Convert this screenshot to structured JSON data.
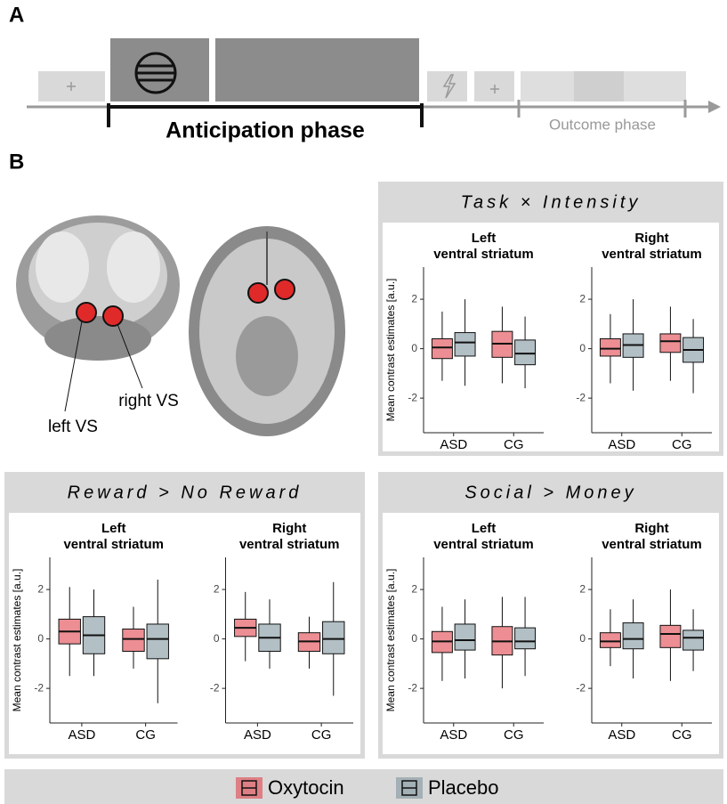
{
  "panel_a": {
    "label": "A",
    "anticipation": "Anticipation phase",
    "outcome": "Outcome phase"
  },
  "panel_b": {
    "label": "B",
    "left_vs": "left VS",
    "right_vs": "right VS"
  },
  "chart_data": [
    {
      "title": "Task × Intensity",
      "charts": [
        {
          "type": "box",
          "title": [
            "Left",
            "ventral striatum"
          ],
          "ylabel": "Mean contrast estimates [a.u.]",
          "categories": [
            "ASD",
            "CG"
          ],
          "ylim": [
            -3.4,
            3.3
          ],
          "yticks": [
            -2,
            0,
            2
          ],
          "boxes": [
            [
              [
                -1.3,
                -0.4,
                0.05,
                0.4,
                1.5
              ],
              [
                -1.5,
                -0.3,
                0.25,
                0.65,
                2.0
              ]
            ],
            [
              [
                -1.4,
                -0.35,
                0.2,
                0.7,
                1.7
              ],
              [
                -1.6,
                -0.65,
                -0.2,
                0.35,
                1.3
              ]
            ]
          ]
        },
        {
          "type": "box",
          "title": [
            "Right",
            "ventral striatum"
          ],
          "categories": [
            "ASD",
            "CG"
          ],
          "ylim": [
            -3.4,
            3.3
          ],
          "yticks": [
            -2,
            0,
            2
          ],
          "boxes": [
            [
              [
                -1.4,
                -0.3,
                0.0,
                0.4,
                1.4
              ],
              [
                -1.7,
                -0.35,
                0.15,
                0.6,
                2.0
              ]
            ],
            [
              [
                -1.3,
                -0.15,
                0.3,
                0.6,
                1.7
              ],
              [
                -1.8,
                -0.55,
                -0.05,
                0.45,
                1.2
              ]
            ]
          ]
        }
      ]
    },
    {
      "title": "Reward > No Reward",
      "charts": [
        {
          "type": "box",
          "title": [
            "Left",
            "ventral striatum"
          ],
          "ylabel": "Mean contrast estimates [a.u.]",
          "categories": [
            "ASD",
            "CG"
          ],
          "ylim": [
            -3.4,
            3.3
          ],
          "yticks": [
            -2,
            0,
            2
          ],
          "boxes": [
            [
              [
                -1.5,
                -0.2,
                0.3,
                0.8,
                2.1
              ],
              [
                -1.5,
                -0.6,
                0.15,
                0.9,
                2.0
              ]
            ],
            [
              [
                -1.2,
                -0.5,
                0.0,
                0.4,
                1.3
              ],
              [
                -2.6,
                -0.8,
                0.0,
                0.6,
                2.4
              ]
            ]
          ]
        },
        {
          "type": "box",
          "title": [
            "Right",
            "ventral striatum"
          ],
          "categories": [
            "ASD",
            "CG"
          ],
          "ylim": [
            -3.4,
            3.3
          ],
          "yticks": [
            -2,
            0,
            2
          ],
          "boxes": [
            [
              [
                -0.9,
                0.1,
                0.45,
                0.8,
                1.9
              ],
              [
                -1.2,
                -0.5,
                0.05,
                0.6,
                1.6
              ]
            ],
            [
              [
                -1.2,
                -0.5,
                -0.1,
                0.25,
                0.9
              ],
              [
                -2.3,
                -0.6,
                0.0,
                0.7,
                2.3
              ]
            ]
          ]
        }
      ]
    },
    {
      "title": "Social > Money",
      "charts": [
        {
          "type": "box",
          "title": [
            "Left",
            "ventral striatum"
          ],
          "ylabel": "Mean contrast estimates [a.u.]",
          "categories": [
            "ASD",
            "CG"
          ],
          "ylim": [
            -3.4,
            3.3
          ],
          "yticks": [
            -2,
            0,
            2
          ],
          "boxes": [
            [
              [
                -1.7,
                -0.55,
                -0.1,
                0.3,
                1.3
              ],
              [
                -1.6,
                -0.45,
                -0.05,
                0.6,
                1.6
              ]
            ],
            [
              [
                -2.0,
                -0.65,
                -0.1,
                0.5,
                1.7
              ],
              [
                -1.5,
                -0.4,
                -0.1,
                0.45,
                1.7
              ]
            ]
          ]
        },
        {
          "type": "box",
          "title": [
            "Right",
            "ventral striatum"
          ],
          "categories": [
            "ASD",
            "CG"
          ],
          "ylim": [
            -3.4,
            3.3
          ],
          "yticks": [
            -2,
            0,
            2
          ],
          "boxes": [
            [
              [
                -1.1,
                -0.35,
                -0.1,
                0.25,
                1.2
              ],
              [
                -1.6,
                -0.4,
                0.0,
                0.65,
                1.6
              ]
            ],
            [
              [
                -1.7,
                -0.35,
                0.2,
                0.55,
                2.0
              ],
              [
                -1.3,
                -0.45,
                0.05,
                0.35,
                1.2
              ]
            ]
          ]
        }
      ]
    }
  ],
  "legend": {
    "position": "bottom",
    "items": [
      {
        "name": "Oxytocin",
        "color": "#e0434b"
      },
      {
        "name": "Placebo",
        "color": "#7f949c"
      }
    ]
  }
}
